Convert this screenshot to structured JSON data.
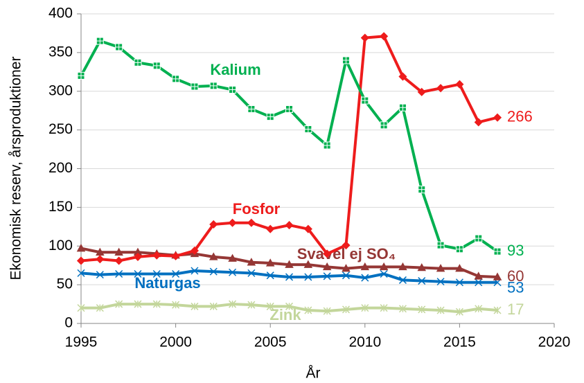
{
  "chart_data": {
    "type": "line",
    "xlabel": "År",
    "ylabel": "Ekonomisk reserv, årsproduktioner",
    "x": [
      1995,
      1996,
      1997,
      1998,
      1999,
      2000,
      2001,
      2002,
      2003,
      2004,
      2005,
      2006,
      2007,
      2008,
      2009,
      2010,
      2011,
      2012,
      2013,
      2014,
      2015,
      2016,
      2017
    ],
    "series": [
      {
        "name": "Kalium",
        "color": "#00b050",
        "marker": "square-plus",
        "values": [
          320,
          365,
          357,
          337,
          333,
          316,
          306,
          307,
          302,
          277,
          267,
          277,
          251,
          230,
          340,
          288,
          256,
          279,
          173,
          101,
          96,
          110,
          93
        ]
      },
      {
        "name": "Fosfor",
        "color": "#ee1c1c",
        "marker": "diamond",
        "values": [
          81,
          83,
          81,
          86,
          88,
          87,
          94,
          128,
          130,
          130,
          122,
          127,
          122,
          90,
          101,
          369,
          371,
          319,
          299,
          304,
          309,
          260,
          266
        ]
      },
      {
        "name": "Svavel ej SO₄",
        "color": "#953735",
        "marker": "triangle",
        "values": [
          97,
          92,
          92,
          92,
          90,
          88,
          90,
          86,
          84,
          79,
          78,
          76,
          76,
          73,
          71,
          73,
          73,
          73,
          72,
          71,
          71,
          61,
          60
        ]
      },
      {
        "name": "Naturgas",
        "color": "#0070c0",
        "marker": "x",
        "values": [
          65,
          63,
          64,
          64,
          64,
          64,
          68,
          67,
          66,
          65,
          62,
          60,
          60,
          61,
          62,
          59,
          64,
          56,
          55,
          54,
          53,
          53,
          53
        ]
      },
      {
        "name": "Zink",
        "color": "#c3d69b",
        "marker": "star",
        "values": [
          20,
          20,
          25,
          25,
          25,
          24,
          22,
          22,
          25,
          24,
          22,
          22,
          17,
          16,
          18,
          20,
          20,
          19,
          18,
          17,
          15,
          19,
          17
        ]
      }
    ],
    "xlim": [
      1995,
      2020
    ],
    "xticks": [
      1995,
      2000,
      2005,
      2010,
      2015,
      2020
    ],
    "ylim": [
      0,
      400
    ],
    "yticks": [
      0,
      50,
      100,
      150,
      200,
      250,
      300,
      350,
      400
    ],
    "grid": true
  }
}
